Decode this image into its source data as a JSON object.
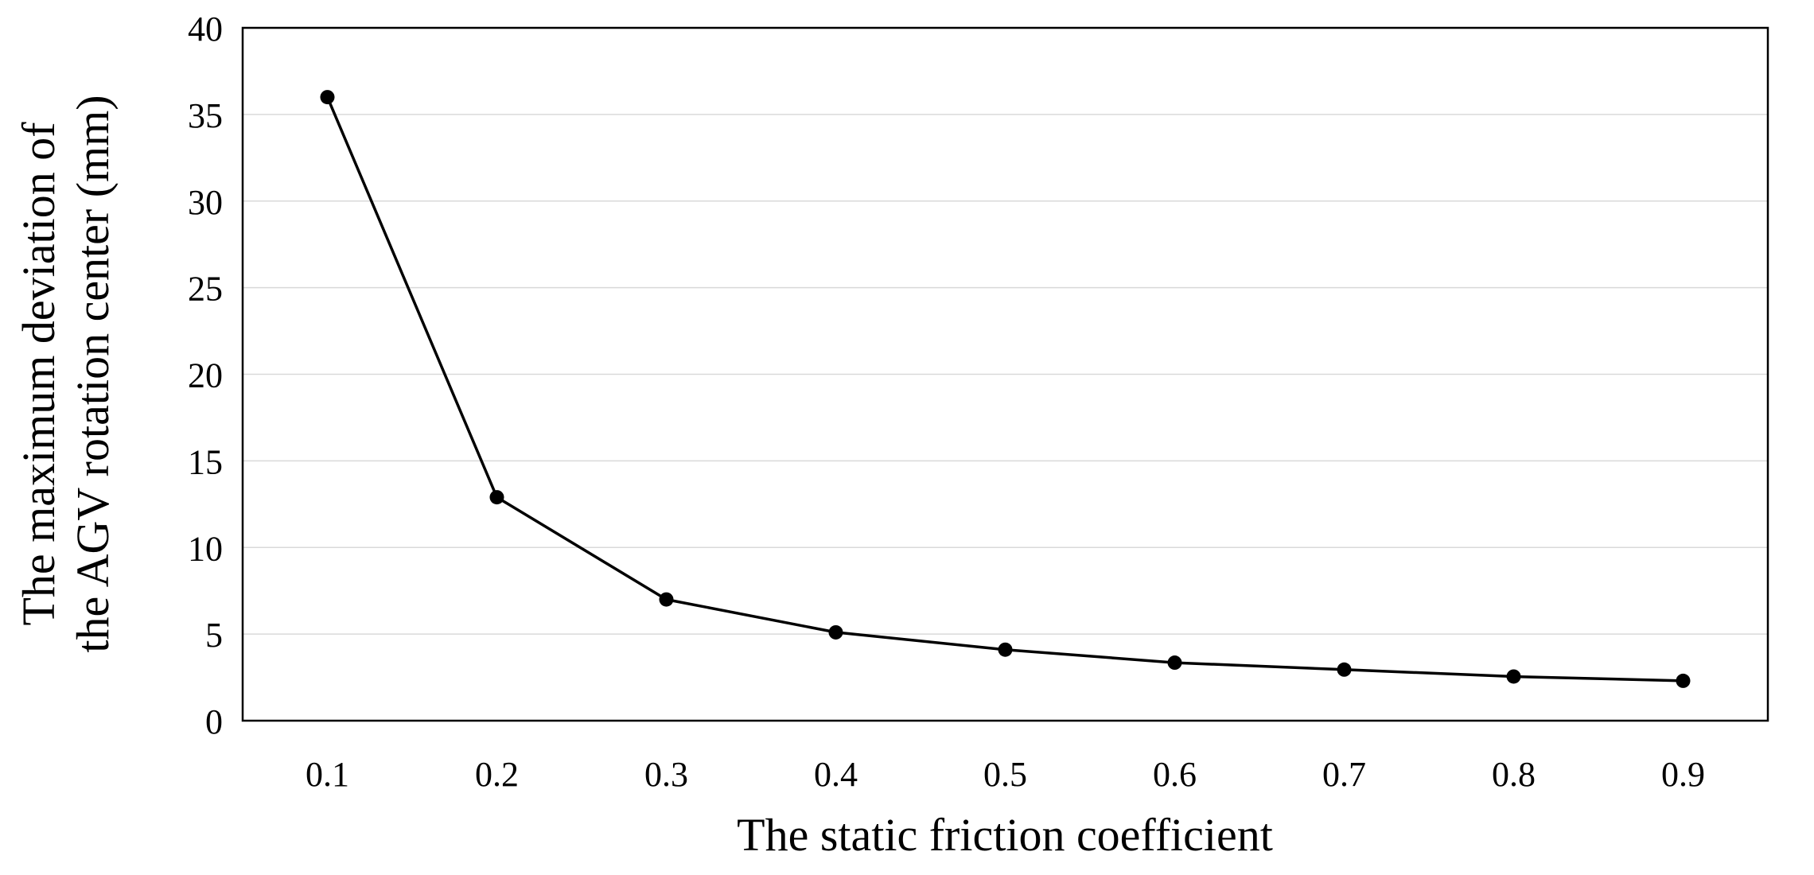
{
  "chart_data": {
    "type": "line",
    "title": "",
    "xlabel": "The static friction coefficient",
    "ylabel_lines": [
      "The maximum deviation of",
      "the AGV rotation center (mm)"
    ],
    "categories": [
      "0.1",
      "0.2",
      "0.3",
      "0.4",
      "0.5",
      "0.6",
      "0.7",
      "0.8",
      "0.9"
    ],
    "series": [
      {
        "values": [
          36.0,
          12.9,
          7.0,
          5.1,
          4.1,
          3.35,
          2.95,
          2.55,
          2.3
        ],
        "color": "#000000",
        "marker": "circle"
      }
    ],
    "ylim": [
      0,
      40
    ],
    "yticks": [
      "0",
      "5",
      "10",
      "15",
      "20",
      "25",
      "30",
      "35",
      "40"
    ],
    "grid": "horizontal",
    "gridColor": "#d9d9d9",
    "legend": "none"
  }
}
